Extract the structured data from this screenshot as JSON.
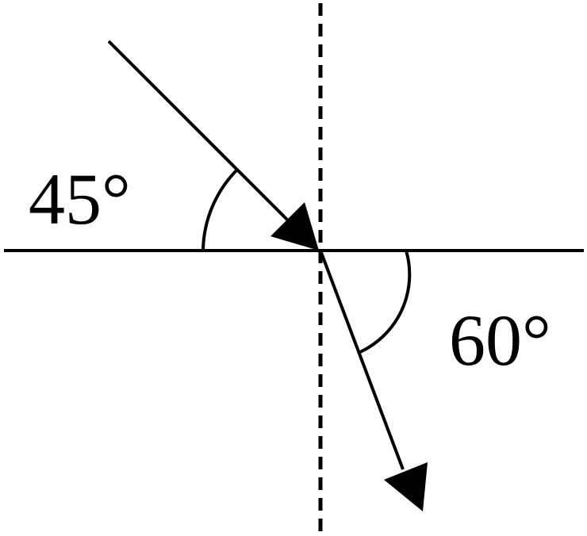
{
  "diagram": {
    "incident_angle_label": "45°",
    "refracted_angle_label": "60°",
    "stroke_color": "#000000",
    "background_color": "#ffffff"
  }
}
